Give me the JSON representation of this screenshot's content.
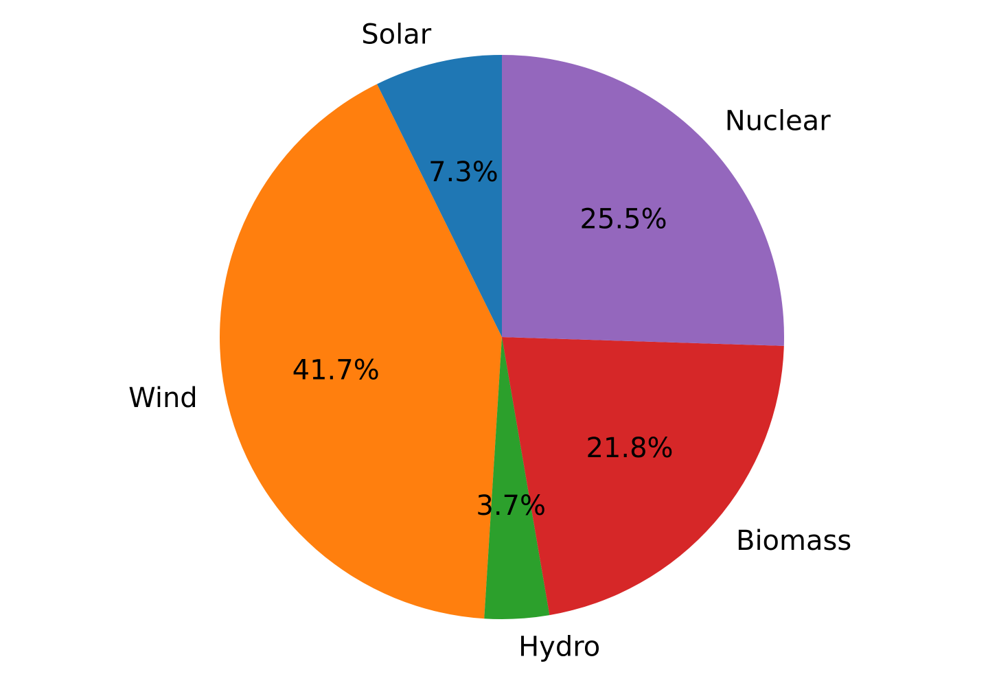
{
  "chart_data": {
    "type": "pie",
    "title": "",
    "start": "top, counterclockwise",
    "slices": [
      {
        "label": "Solar",
        "value": 7.3,
        "pct_label": "7.3%",
        "color": "#1f77b4"
      },
      {
        "label": "Wind",
        "value": 41.7,
        "pct_label": "41.7%",
        "color": "#ff7f0e"
      },
      {
        "label": "Hydro",
        "value": 3.7,
        "pct_label": "3.7%",
        "color": "#2ca02c"
      },
      {
        "label": "Biomass",
        "value": 21.8,
        "pct_label": "21.8%",
        "color": "#d62728"
      },
      {
        "label": "Nuclear",
        "value": 25.5,
        "pct_label": "25.5%",
        "color": "#9467bd"
      }
    ]
  }
}
